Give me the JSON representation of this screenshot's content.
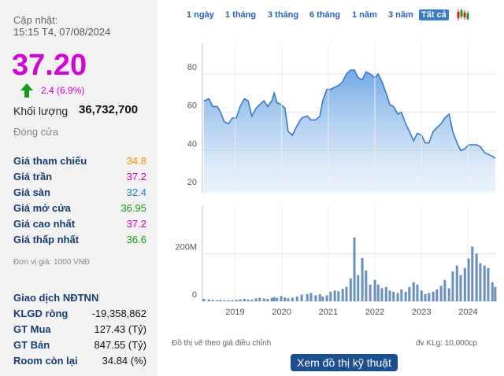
{
  "header": {
    "updated_label": "Cập nhật:",
    "updated_time": "15:15 T4, 07/08/2024",
    "price": "37.20",
    "change": "2.4 (6.9%)",
    "volume_label": "Khối lượng",
    "volume": "36,732,700",
    "status": "Đóng cửa"
  },
  "prices": [
    {
      "label": "Giá tham chiếu",
      "value": "34.8",
      "color": "#f0900a"
    },
    {
      "label": "Giá trần",
      "value": "37.2",
      "color": "#d200d2"
    },
    {
      "label": "Giá sàn",
      "value": "32.4",
      "color": "#1e7fc8"
    },
    {
      "label": "Giá mở cửa",
      "value": "36.95",
      "color": "#1a9a1a"
    },
    {
      "label": "Giá cao nhất",
      "value": "37.2",
      "color": "#d200d2"
    },
    {
      "label": "Giá thấp nhất",
      "value": "36.6",
      "color": "#1a9a1a"
    }
  ],
  "unit_note": "Đơn vị giá: 1000 VNĐ",
  "foreign": {
    "title": "Giao dịch NĐTNN",
    "rows": [
      [
        "KLGD ròng",
        "-19,358,862"
      ],
      [
        "GT Mua",
        "127.43 (Tỷ)"
      ],
      [
        "GT Bán",
        "847.55 (Tỷ)"
      ],
      [
        "Room còn lại",
        "34.84 (%)"
      ]
    ]
  },
  "ranges": [
    "1 ngày",
    "1 tháng",
    "3 tháng",
    "6 tháng",
    "1 năm",
    "3 năm",
    "Tất cả"
  ],
  "footer": {
    "note": "Đồ thị vẽ theo giá điều chỉnh",
    "unit": "đv KLg: 10,000cp",
    "button": "Xem đồ thị kỹ thuật"
  },
  "chart_data": [
    {
      "type": "area",
      "color": "#3a78c8",
      "xlim": [
        2018.3,
        2024.6
      ],
      "ylim": [
        18,
        96
      ],
      "yticks": [
        20,
        40,
        60,
        80
      ],
      "grid": true,
      "x": [
        2018.33,
        2018.44,
        2018.52,
        2018.62,
        2018.69,
        2018.77,
        2018.86,
        2018.94,
        2019.03,
        2019.11,
        2019.2,
        2019.28,
        2019.36,
        2019.45,
        2019.53,
        2019.62,
        2019.7,
        2019.79,
        2019.84,
        2019.9,
        2019.99,
        2020.07,
        2020.14,
        2020.23,
        2020.33,
        2020.43,
        2020.55,
        2020.63,
        2020.73,
        2020.82,
        2020.88,
        2020.97,
        2021.05,
        2021.14,
        2021.22,
        2021.31,
        2021.39,
        2021.48,
        2021.56,
        2021.64,
        2021.73,
        2021.81,
        2021.9,
        2022.0,
        2022.07,
        2022.15,
        2022.24,
        2022.32,
        2022.4,
        2022.49,
        2022.57,
        2022.66,
        2022.74,
        2022.83,
        2022.91,
        2023.0,
        2023.08,
        2023.16,
        2023.25,
        2023.33,
        2023.42,
        2023.5,
        2023.59,
        2023.67,
        2023.76,
        2023.84,
        2023.93,
        2024.01,
        2024.09,
        2024.18,
        2024.26,
        2024.35,
        2024.43,
        2024.52,
        2024.58
      ],
      "values": [
        66,
        67,
        63,
        63,
        60,
        55,
        54,
        57,
        57,
        63,
        67,
        66,
        58,
        62,
        64,
        66,
        63,
        66,
        70,
        65,
        64,
        62,
        50,
        48,
        53,
        57,
        58,
        56,
        56,
        58,
        66,
        72,
        72,
        73,
        74,
        76,
        80,
        82,
        82,
        78,
        77,
        81,
        80,
        78,
        80,
        76,
        70,
        64,
        63,
        59,
        60,
        54,
        50,
        45,
        49,
        48,
        44,
        44,
        50,
        52,
        54,
        57,
        59,
        50,
        44,
        40,
        41,
        43,
        43,
        43,
        42,
        39,
        38,
        37,
        36
      ]
    },
    {
      "type": "bar",
      "color": "#6a8fb8",
      "xlim": [
        2018.3,
        2024.6
      ],
      "ylim": [
        0,
        400
      ],
      "yticks": [
        0,
        {
          "value": 200,
          "label": "200M"
        }
      ],
      "xticks": [
        2019,
        2020,
        2021,
        2022,
        2023,
        2024
      ],
      "x": [
        2018.33,
        2018.44,
        2018.52,
        2018.62,
        2018.69,
        2018.77,
        2018.86,
        2018.94,
        2019.03,
        2019.11,
        2019.2,
        2019.28,
        2019.36,
        2019.45,
        2019.53,
        2019.62,
        2019.7,
        2019.79,
        2019.84,
        2019.9,
        2019.99,
        2020.07,
        2020.14,
        2020.23,
        2020.33,
        2020.43,
        2020.55,
        2020.63,
        2020.73,
        2020.82,
        2020.88,
        2020.97,
        2021.05,
        2021.14,
        2021.22,
        2021.31,
        2021.39,
        2021.48,
        2021.56,
        2021.64,
        2021.73,
        2021.81,
        2021.9,
        2022.0,
        2022.07,
        2022.15,
        2022.24,
        2022.32,
        2022.4,
        2022.49,
        2022.57,
        2022.66,
        2022.74,
        2022.83,
        2022.91,
        2023.0,
        2023.08,
        2023.16,
        2023.25,
        2023.33,
        2023.42,
        2023.5,
        2023.59,
        2023.67,
        2023.76,
        2023.84,
        2023.93,
        2024.01,
        2024.09,
        2024.18,
        2024.26,
        2024.35,
        2024.43,
        2024.52,
        2024.58
      ],
      "values": [
        10,
        8,
        6,
        5,
        6,
        4,
        4,
        5,
        6,
        8,
        10,
        8,
        7,
        12,
        15,
        12,
        10,
        14,
        18,
        14,
        22,
        16,
        12,
        15,
        20,
        28,
        30,
        35,
        25,
        30,
        20,
        25,
        40,
        45,
        42,
        52,
        60,
        95,
        268,
        110,
        182,
        130,
        70,
        90,
        70,
        55,
        60,
        45,
        40,
        35,
        50,
        40,
        60,
        80,
        70,
        45,
        30,
        35,
        40,
        50,
        65,
        90,
        55,
        125,
        150,
        110,
        140,
        180,
        230,
        200,
        160,
        150,
        140,
        80,
        60
      ]
    }
  ]
}
